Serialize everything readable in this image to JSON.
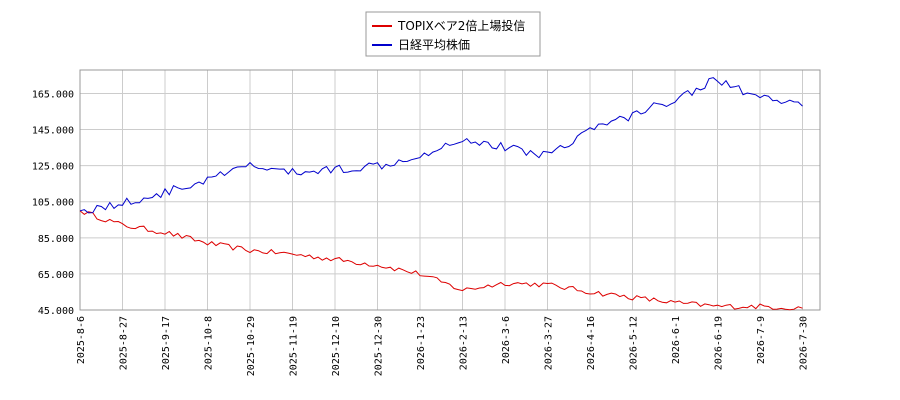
{
  "chart_data": {
    "type": "line",
    "title": "",
    "xlabel": "",
    "ylabel": "",
    "ylim": [
      45000,
      178000
    ],
    "grid": true,
    "legend_position": "top-center",
    "x_tick_labels": [
      "2025-8-6",
      "2025-8-27",
      "2025-9-17",
      "2025-10-8",
      "2025-10-29",
      "2025-11-19",
      "2025-12-10",
      "2025-12-30",
      "2026-1-23",
      "2026-2-13",
      "2026-3-6",
      "2026-3-27",
      "2026-4-16",
      "2026-5-12",
      "2026-6-1",
      "2026-6-19",
      "2026-7-9",
      "2026-7-30"
    ],
    "y_tick_labels": [
      "45.000",
      "65.000",
      "85.000",
      "105.000",
      "125.000",
      "145.000",
      "165.000"
    ],
    "y_ticks": [
      45000,
      65000,
      85000,
      105000,
      125000,
      145000,
      165000
    ],
    "series": [
      {
        "name": "TOPIXベア2倍上場投信",
        "color": "#dd0000",
        "x": [
          "2025-8-6",
          "2025-8-27",
          "2025-9-17",
          "2025-10-8",
          "2025-10-29",
          "2025-11-19",
          "2025-12-10",
          "2025-12-30",
          "2026-1-23",
          "2026-2-13",
          "2026-3-6",
          "2026-3-27",
          "2026-4-16",
          "2026-5-12",
          "2026-6-1",
          "2026-6-19",
          "2026-7-9",
          "2026-7-30"
        ],
        "values": [
          100000,
          92000,
          88000,
          82000,
          78000,
          76000,
          73000,
          70000,
          65000,
          56000,
          60000,
          59000,
          55000,
          52000,
          49000,
          47000,
          47000,
          46000
        ]
      },
      {
        "name": "日経平均株価",
        "color": "#0000cc",
        "x": [
          "2025-8-6",
          "2025-8-27",
          "2025-9-17",
          "2025-10-8",
          "2025-10-29",
          "2025-11-19",
          "2025-12-10",
          "2025-12-30",
          "2026-1-23",
          "2026-2-13",
          "2026-3-6",
          "2026-3-27",
          "2026-4-16",
          "2026-5-12",
          "2026-6-1",
          "2026-6-19",
          "2026-7-9",
          "2026-7-30"
        ],
        "values": [
          100000,
          104000,
          110000,
          117000,
          125000,
          121000,
          123000,
          125000,
          131000,
          140000,
          135000,
          131000,
          145000,
          153000,
          162000,
          173000,
          162000,
          158000
        ]
      }
    ]
  }
}
